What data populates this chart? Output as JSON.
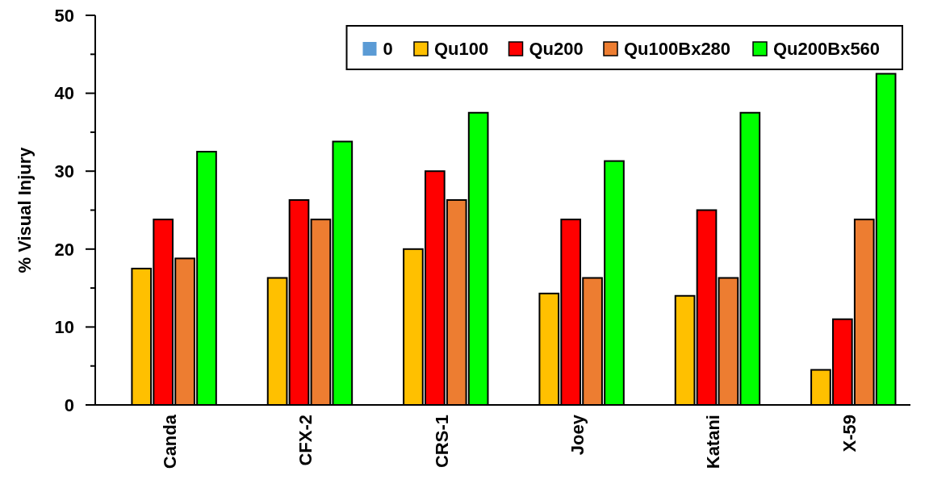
{
  "chart_data": {
    "type": "bar",
    "ylabel": "% Visual Injury",
    "categories": [
      "Canda",
      "CFX-2",
      "CRS-1",
      "Joey",
      "Katani",
      "X-59"
    ],
    "series": [
      {
        "name": "0",
        "color": "#5b9bd5",
        "values": [
          0,
          0,
          0,
          0,
          0,
          0
        ]
      },
      {
        "name": "Qu100",
        "color": "#ffc000",
        "values": [
          17.5,
          16.3,
          20,
          14.3,
          14,
          4.5
        ]
      },
      {
        "name": "Qu200",
        "color": "#ff0000",
        "values": [
          23.8,
          26.3,
          30,
          23.8,
          25,
          11
        ]
      },
      {
        "name": "Qu100Bx280",
        "color": "#ed7d31",
        "values": [
          18.8,
          23.8,
          26.3,
          16.3,
          16.3,
          23.8
        ]
      },
      {
        "name": "Qu200Bx560",
        "color": "#00ff00",
        "values": [
          32.5,
          33.8,
          37.5,
          31.3,
          37.5,
          42.5
        ]
      }
    ],
    "ylim": [
      0,
      50
    ],
    "yticks": [
      0,
      {
        "value": 5,
        "label": null
      },
      10,
      {
        "value": 15,
        "label": null
      },
      20,
      {
        "value": 25,
        "label": null
      },
      30,
      {
        "value": 35,
        "label": null
      },
      40,
      {
        "value": 45,
        "label": null
      },
      50
    ],
    "legend": "top right",
    "grid": false
  }
}
